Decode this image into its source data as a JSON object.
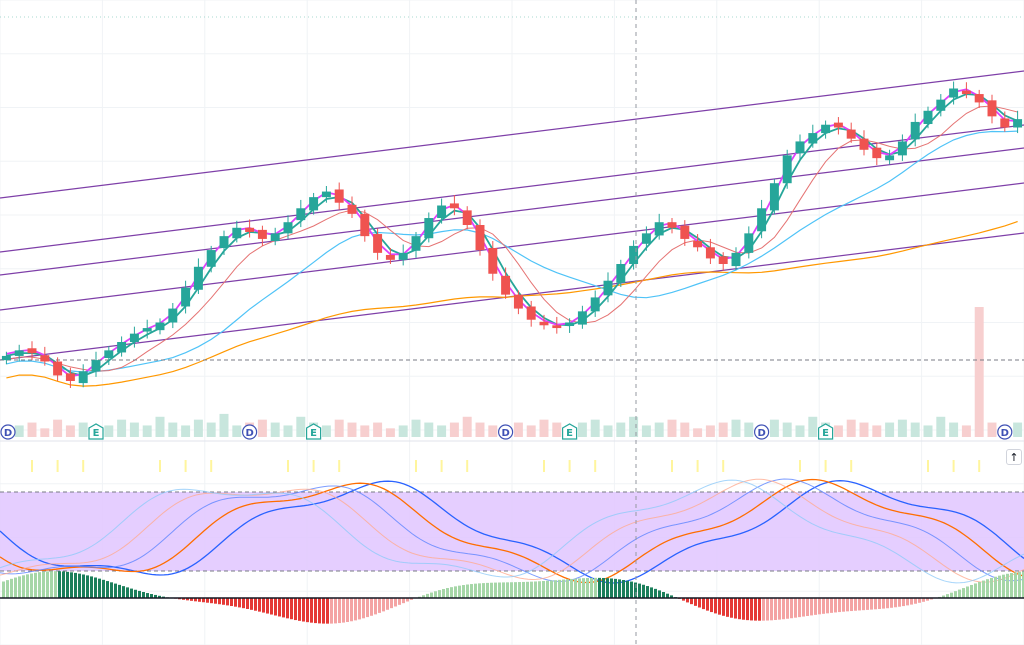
{
  "chart_data": {
    "type": "candlestick",
    "grid": true,
    "colors": {
      "up": "#26a69a",
      "down": "#ef5350",
      "ema_fast": "#e040fb",
      "ema_mid": "#26a69a",
      "sma_red": "#e57373",
      "sma_blue": "#4fc3f7",
      "sma_orange": "#ff9800",
      "channel": "#7e3fa8",
      "stoch_band": "#e1c6ff",
      "hist_up_strong": "#1b7f5b",
      "hist_up_weak": "#a5d6a7",
      "hist_down_strong": "#e53935",
      "hist_down_weak": "#f4a3a3",
      "event_badge": "#26a69a",
      "dividend_badge": "#3f51b5"
    },
    "price_close": [
      286,
      290,
      288,
      282,
      272,
      268,
      275,
      283,
      290,
      296,
      302,
      306,
      310,
      320,
      335,
      350,
      362,
      372,
      378,
      375,
      370,
      374,
      382,
      392,
      400,
      404,
      396,
      388,
      372,
      360,
      355,
      360,
      372,
      385,
      394,
      392,
      380,
      362,
      345,
      330,
      320,
      312,
      308,
      306,
      310,
      318,
      328,
      340,
      352,
      365,
      374,
      382,
      378,
      370,
      364,
      356,
      352,
      360,
      374,
      392,
      410,
      430,
      440,
      446,
      452,
      450,
      442,
      434,
      428,
      430,
      440,
      454,
      462,
      470,
      478,
      474,
      468,
      458,
      450,
      456
    ],
    "volume": [
      3,
      4,
      5,
      3,
      6,
      4,
      5,
      3,
      4,
      6,
      5,
      4,
      7,
      5,
      4,
      6,
      5,
      8,
      4,
      5,
      6,
      5,
      4,
      7,
      5,
      4,
      6,
      5,
      4,
      5,
      3,
      4,
      6,
      5,
      4,
      5,
      7,
      5,
      4,
      3,
      5,
      4,
      6,
      5,
      4,
      5,
      6,
      4,
      5,
      7,
      4,
      5,
      6,
      5,
      3,
      4,
      5,
      6,
      5,
      4,
      6,
      5,
      4,
      7,
      5,
      4,
      6,
      5,
      4,
      5,
      6,
      5,
      4,
      7,
      5,
      4,
      45,
      5,
      4,
      5
    ],
    "events": [
      {
        "type": "earnings",
        "label": "E",
        "index": 7
      },
      {
        "type": "earnings",
        "label": "E",
        "index": 24
      },
      {
        "type": "earnings",
        "label": "E",
        "index": 44
      },
      {
        "type": "earnings",
        "label": "E",
        "index": 64
      },
      {
        "type": "dividend",
        "label": "D",
        "index": 0
      },
      {
        "type": "dividend",
        "label": "D",
        "index": 19
      },
      {
        "type": "dividend",
        "label": "D",
        "index": 39
      },
      {
        "type": "dividend",
        "label": "D",
        "index": 59
      },
      {
        "type": "dividend",
        "label": "D",
        "index": 78
      }
    ],
    "stochastic_band": [
      20,
      80
    ],
    "scroll_button_label": "↑"
  }
}
